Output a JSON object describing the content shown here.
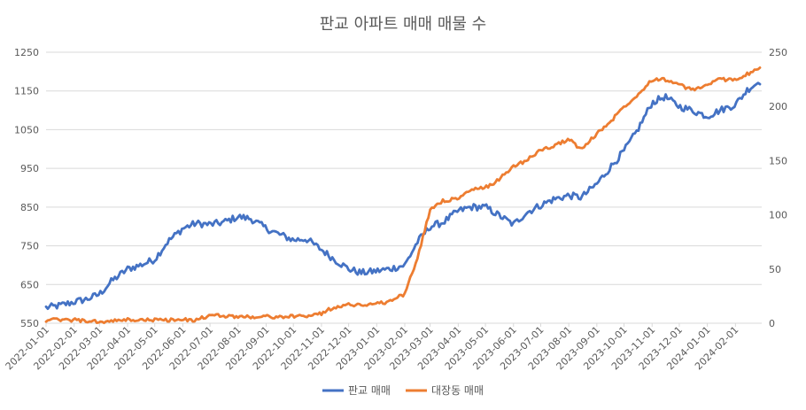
{
  "chart_data": {
    "type": "line",
    "title": "판교 아파트 매매 매물 수",
    "x_tick_labels": [
      "2022-01-01",
      "2022-02-01",
      "2022-03-01",
      "2022-04-01",
      "2022-05-01",
      "2022-06-01",
      "2022-07-01",
      "2022-08-01",
      "2022-09-01",
      "2022-10-01",
      "2022-11-01",
      "2022-12-01",
      "2023-01-01",
      "2023-02-01",
      "2023-03-01",
      "2023-04-01",
      "2023-05-01",
      "2023-06-01",
      "2023-07-01",
      "2023-08-01",
      "2023-09-01",
      "2023-10-01",
      "2023-11-01",
      "2023-12-01",
      "2024-01-01",
      "2024-02-01"
    ],
    "xlim": [
      "2022-01-01",
      "2024-03-01"
    ],
    "y_left": {
      "ticks": [
        550,
        650,
        750,
        850,
        950,
        1050,
        1150,
        1250
      ],
      "ylim": [
        550,
        1250
      ]
    },
    "y_right": {
      "ticks": [
        0,
        50,
        100,
        150,
        200,
        250
      ],
      "ylim": [
        0,
        250
      ]
    },
    "grid": true,
    "legend": "bottom",
    "series": [
      {
        "name": "판교 매매",
        "axis": "left",
        "color": "#4472C4",
        "x": [
          "2022-01-01",
          "2022-01-15",
          "2022-02-01",
          "2022-02-15",
          "2022-03-01",
          "2022-03-15",
          "2022-04-01",
          "2022-04-15",
          "2022-05-01",
          "2022-05-15",
          "2022-06-01",
          "2022-06-15",
          "2022-07-01",
          "2022-07-15",
          "2022-08-01",
          "2022-08-15",
          "2022-09-01",
          "2022-09-15",
          "2022-10-01",
          "2022-10-15",
          "2022-11-01",
          "2022-11-15",
          "2022-12-01",
          "2022-12-15",
          "2023-01-01",
          "2023-01-15",
          "2023-02-01",
          "2023-02-15",
          "2023-03-01",
          "2023-03-15",
          "2023-04-01",
          "2023-04-15",
          "2023-05-01",
          "2023-05-15",
          "2023-06-01",
          "2023-06-15",
          "2023-07-01",
          "2023-07-15",
          "2023-08-01",
          "2023-08-15",
          "2023-09-01",
          "2023-09-15",
          "2023-10-01",
          "2023-10-15",
          "2023-11-01",
          "2023-11-15",
          "2023-12-01",
          "2023-12-15",
          "2024-01-01",
          "2024-01-15",
          "2024-02-01",
          "2024-02-15",
          "2024-02-28"
        ],
        "y": [
          590,
          595,
          605,
          612,
          625,
          660,
          690,
          700,
          715,
          760,
          795,
          808,
          805,
          810,
          825,
          820,
          795,
          780,
          765,
          768,
          740,
          715,
          690,
          680,
          685,
          690,
          700,
          760,
          800,
          810,
          840,
          850,
          850,
          830,
          805,
          835,
          855,
          870,
          880,
          875,
          910,
          950,
          995,
          1045,
          1120,
          1135,
          1110,
          1100,
          1085,
          1100,
          1115,
          1155,
          1175
        ]
      },
      {
        "name": "대장동 매매",
        "axis": "right",
        "color": "#ED7D31",
        "x": [
          "2022-01-01",
          "2022-01-15",
          "2022-02-01",
          "2022-02-15",
          "2022-03-01",
          "2022-03-15",
          "2022-04-01",
          "2022-04-15",
          "2022-05-01",
          "2022-05-15",
          "2022-06-01",
          "2022-06-15",
          "2022-07-01",
          "2022-07-15",
          "2022-08-01",
          "2022-08-15",
          "2022-09-01",
          "2022-09-15",
          "2022-10-01",
          "2022-10-15",
          "2022-11-01",
          "2022-11-15",
          "2022-12-01",
          "2022-12-15",
          "2023-01-01",
          "2023-01-15",
          "2023-02-01",
          "2023-02-15",
          "2023-03-01",
          "2023-03-15",
          "2023-04-01",
          "2023-04-15",
          "2023-05-01",
          "2023-05-15",
          "2023-06-01",
          "2023-06-15",
          "2023-07-01",
          "2023-07-15",
          "2023-08-01",
          "2023-08-15",
          "2023-09-01",
          "2023-09-15",
          "2023-10-01",
          "2023-10-15",
          "2023-11-01",
          "2023-11-15",
          "2023-12-01",
          "2023-12-15",
          "2024-01-01",
          "2024-01-15",
          "2024-02-01",
          "2024-02-15",
          "2024-02-28"
        ],
        "y": [
          3,
          3,
          3,
          2,
          1,
          2,
          3,
          3,
          3,
          3,
          3,
          3,
          7,
          7,
          6,
          6,
          6,
          6,
          6,
          7,
          9,
          15,
          17,
          17,
          18,
          20,
          27,
          60,
          105,
          113,
          115,
          123,
          125,
          132,
          145,
          150,
          160,
          163,
          170,
          160,
          175,
          185,
          200,
          210,
          225,
          225,
          220,
          215,
          220,
          225,
          225,
          230,
          235
        ]
      }
    ]
  }
}
